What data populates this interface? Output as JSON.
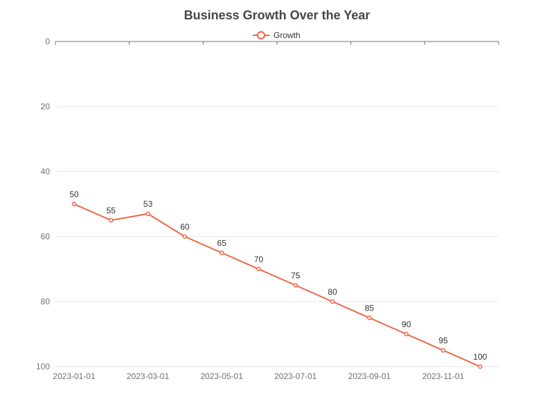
{
  "chart_data": {
    "type": "line",
    "title": "Business Growth Over the Year",
    "xlabel": "",
    "ylabel": "",
    "x": [
      "2023-01-01",
      "2023-02-01",
      "2023-03-01",
      "2023-04-01",
      "2023-05-01",
      "2023-06-01",
      "2023-07-01",
      "2023-08-01",
      "2023-09-01",
      "2023-10-01",
      "2023-11-01",
      "2023-12-01"
    ],
    "x_tick_labels": [
      "2023-01-01",
      "2023-03-01",
      "2023-05-01",
      "2023-07-01",
      "2023-09-01",
      "2023-11-01"
    ],
    "y_ticks": [
      0,
      20,
      40,
      60,
      80,
      100
    ],
    "ylim": [
      0,
      100
    ],
    "y_inverted": true,
    "grid": true,
    "legend_position": "top-center",
    "series": [
      {
        "name": "Growth",
        "color": "#ee6644",
        "values": [
          50,
          55,
          53,
          60,
          65,
          70,
          75,
          80,
          85,
          90,
          95,
          100
        ],
        "labels": [
          "50",
          "55",
          "53",
          "60",
          "65",
          "70",
          "75",
          "80",
          "85",
          "90",
          "95",
          "100"
        ]
      }
    ]
  }
}
